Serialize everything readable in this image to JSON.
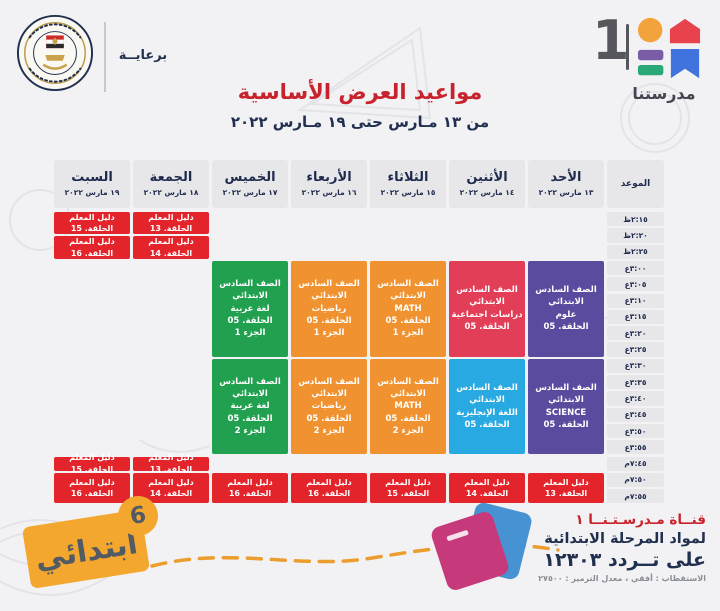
{
  "brand": {
    "channel_number": "1",
    "name": "مدرستنا"
  },
  "sponsor": {
    "label": "برعايــة"
  },
  "title": "مواعيد العرض الأساسية",
  "subtitle": "من ١٣ مـارس حتى ١٩ مـارس ٢٠٢٢",
  "colors": {
    "red": "#e3242b",
    "crimson": "#e23e57",
    "purple": "#5b4b9e",
    "orange": "#f0922f",
    "green": "#21a04f",
    "blue": "#29a9e1"
  },
  "schedule": {
    "time_header": "الموعد",
    "days": [
      {
        "name": "الأحد",
        "date": "١٣ مارس ٢٠٢٢"
      },
      {
        "name": "الأثنين",
        "date": "١٤ مارس ٢٠٢٢"
      },
      {
        "name": "الثلاثاء",
        "date": "١٥ مارس ٢٠٢٢"
      },
      {
        "name": "الأربعاء",
        "date": "١٦ مارس ٢٠٢٢"
      },
      {
        "name": "الخميس",
        "date": "١٧ مارس ٢٠٢٢"
      },
      {
        "name": "الجمعة",
        "date": "١٨ مارس ٢٠٢٢"
      },
      {
        "name": "السبت",
        "date": "١٩ مارس ٢٠٢٢"
      }
    ],
    "times": [
      "٢:١٥ظ",
      "٢:٢٠ظ",
      "٢:٢٥ظ",
      "٣:٠٠ع",
      "٣:٠٥ع",
      "٣:١٠ع",
      "٣:١٥ع",
      "٣:٢٠ع",
      "٣:٢٥ع",
      "٣:٣٠ع",
      "٣:٣٥ع",
      "٣:٤٠ع",
      "٣:٤٥ع",
      "٣:٥٠ع",
      "٣:٥٥ع",
      "٧:٤٥م",
      "٧:٥٠م",
      "٧:٥٥م"
    ],
    "blocks": [
      {
        "day": 5,
        "row": 0,
        "span": 1.5,
        "color": "red",
        "kind": "guide",
        "lines": [
          "دليل المعلم الحلقة. 13"
        ]
      },
      {
        "day": 5,
        "row": 1.5,
        "span": 1.5,
        "color": "red",
        "kind": "guide",
        "lines": [
          "دليل المعلم الحلقة. 14"
        ]
      },
      {
        "day": 6,
        "row": 0,
        "span": 1.5,
        "color": "red",
        "kind": "guide",
        "lines": [
          "دليل المعلم الحلقة. 15"
        ]
      },
      {
        "day": 6,
        "row": 1.5,
        "span": 1.5,
        "color": "red",
        "kind": "guide",
        "lines": [
          "دليل المعلم الحلقة. 16"
        ]
      },
      {
        "day": 0,
        "row": 3,
        "span": 6,
        "color": "purple",
        "kind": "lesson",
        "lines": [
          "الصف السادس الابتدائي",
          "علوم",
          "الحلقة. 05"
        ]
      },
      {
        "day": 1,
        "row": 3,
        "span": 6,
        "color": "crimson",
        "kind": "lesson",
        "lines": [
          "الصف السادس الابتدائي",
          "دراسات اجتماعية",
          "الحلقة. 05"
        ]
      },
      {
        "day": 2,
        "row": 3,
        "span": 6,
        "color": "orange",
        "kind": "lesson",
        "lines": [
          "الصف السادس الابتدائي",
          "MATH",
          "الحلقة. 05",
          "الجزء 1"
        ]
      },
      {
        "day": 3,
        "row": 3,
        "span": 6,
        "color": "orange",
        "kind": "lesson",
        "lines": [
          "الصف السادس الابتدائي",
          "رياضيات",
          "الحلقة. 05",
          "الجزء 1"
        ]
      },
      {
        "day": 4,
        "row": 3,
        "span": 6,
        "color": "green",
        "kind": "lesson",
        "lines": [
          "الصف السادس الابتدائي",
          "لغة عربية",
          "الحلقة. 05",
          "الجزء 1"
        ]
      },
      {
        "day": 0,
        "row": 9,
        "span": 6,
        "color": "purple",
        "kind": "lesson",
        "lines": [
          "الصف السادس الابتدائي",
          "SCIENCE",
          "الحلقة. 05"
        ]
      },
      {
        "day": 1,
        "row": 9,
        "span": 6,
        "color": "blue",
        "kind": "lesson",
        "lines": [
          "الصف السادس الابتدائي",
          "اللغة الإنجليزية",
          "الحلقة. 05"
        ]
      },
      {
        "day": 2,
        "row": 9,
        "span": 6,
        "color": "orange",
        "kind": "lesson",
        "lines": [
          "الصف السادس الابتدائي",
          "MATH",
          "الحلقة. 05",
          "الجزء 2"
        ]
      },
      {
        "day": 3,
        "row": 9,
        "span": 6,
        "color": "orange",
        "kind": "lesson",
        "lines": [
          "الصف السادس الابتدائي",
          "رياضيات",
          "الحلقة. 05",
          "الجزء 2"
        ]
      },
      {
        "day": 4,
        "row": 9,
        "span": 6,
        "color": "green",
        "kind": "lesson",
        "lines": [
          "الصف السادس الابتدائي",
          "لغة عربية",
          "الحلقة. 05",
          "الجزء 2"
        ]
      },
      {
        "day": 5,
        "row": 15,
        "span": 1,
        "color": "red",
        "kind": "guide",
        "lines": [
          "دليل المعلم الحلقة. 13"
        ]
      },
      {
        "day": 6,
        "row": 15,
        "span": 1,
        "color": "red",
        "kind": "guide",
        "lines": [
          "دليل المعلم الحلقة. 15"
        ]
      },
      {
        "day": 0,
        "row": 16,
        "span": 2,
        "color": "red",
        "kind": "guide",
        "lines": [
          "دليل المعلم الحلقة. 13"
        ]
      },
      {
        "day": 1,
        "row": 16,
        "span": 2,
        "color": "red",
        "kind": "guide",
        "lines": [
          "دليل المعلم الحلقة. 14"
        ]
      },
      {
        "day": 2,
        "row": 16,
        "span": 2,
        "color": "red",
        "kind": "guide",
        "lines": [
          "دليل المعلم الحلقة. 15"
        ]
      },
      {
        "day": 3,
        "row": 16,
        "span": 2,
        "color": "red",
        "kind": "guide",
        "lines": [
          "دليل المعلم الحلقة. 16"
        ]
      },
      {
        "day": 4,
        "row": 16,
        "span": 2,
        "color": "red",
        "kind": "guide",
        "lines": [
          "دليل المعلم الحلقة. 16"
        ]
      },
      {
        "day": 5,
        "row": 16,
        "span": 2,
        "color": "red",
        "kind": "guide",
        "lines": [
          "دليل المعلم الحلقة. 14"
        ]
      },
      {
        "day": 6,
        "row": 16,
        "span": 2,
        "color": "red",
        "kind": "guide",
        "lines": [
          "دليل المعلم الحلقة. 16"
        ]
      }
    ]
  },
  "footer": {
    "stage_label": "ابتدائي",
    "stage_number": "6",
    "channel_line1": "قنــاة مـدرسـتـنــا ١",
    "channel_line2": "لمواد المرحلة الابتدائية",
    "channel_line3": "على تــردد ١٢٣٠٣",
    "channel_line4": "الاستقطاب : أفقي ، معدل الترميز : ٢٧٥٠٠"
  }
}
